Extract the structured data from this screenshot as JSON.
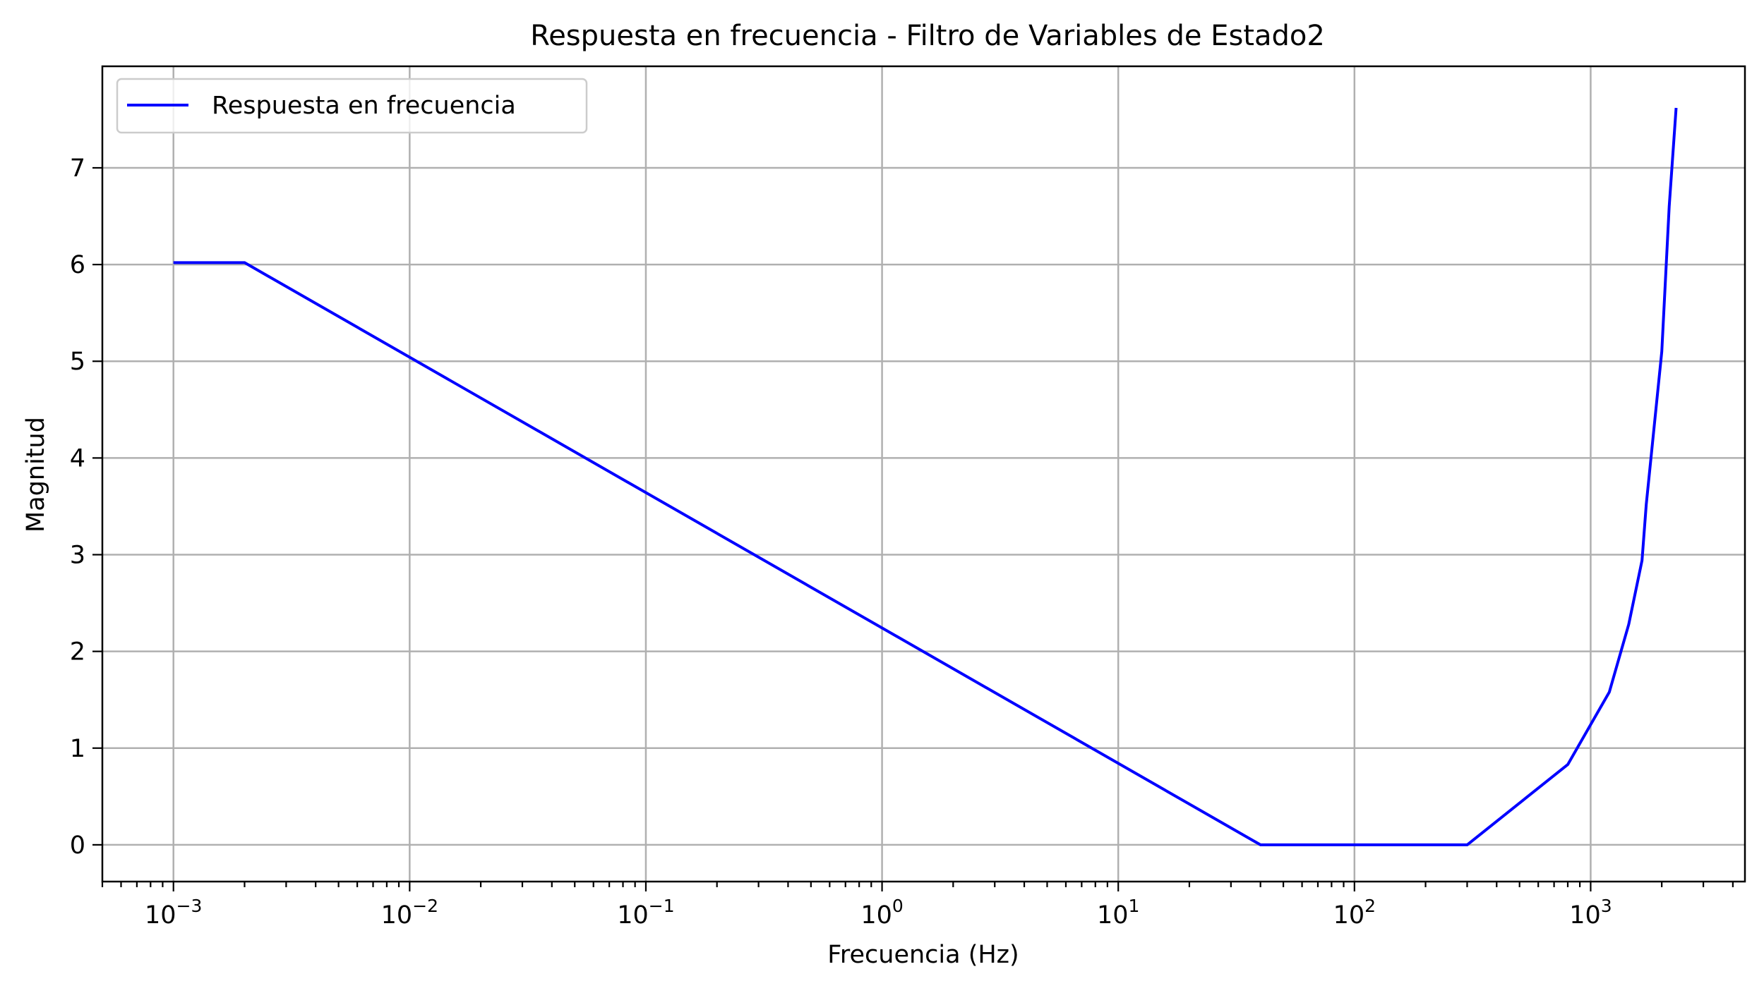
{
  "chart_data": {
    "type": "line",
    "title": "Respuesta en frecuencia - Filtro de Variables de Estado2",
    "xlabel": "Frecuencia (Hz)",
    "ylabel": "Magnitud",
    "xscale": "log",
    "xlim": [
      0.0005,
      4500
    ],
    "ylim": [
      -0.38,
      8.05
    ],
    "x_ticks": [
      {
        "value": 0.001,
        "base": "10",
        "exp": "−3"
      },
      {
        "value": 0.01,
        "base": "10",
        "exp": "−2"
      },
      {
        "value": 0.1,
        "base": "10",
        "exp": "−1"
      },
      {
        "value": 1,
        "base": "10",
        "exp": "0"
      },
      {
        "value": 10,
        "base": "10",
        "exp": "1"
      },
      {
        "value": 100,
        "base": "10",
        "exp": "2"
      },
      {
        "value": 1000,
        "base": "10",
        "exp": "3"
      }
    ],
    "y_ticks": [
      {
        "value": 0,
        "label": "0"
      },
      {
        "value": 1,
        "label": "1"
      },
      {
        "value": 2,
        "label": "2"
      },
      {
        "value": 3,
        "label": "3"
      },
      {
        "value": 4,
        "label": "4"
      },
      {
        "value": 5,
        "label": "5"
      },
      {
        "value": 6,
        "label": "6"
      },
      {
        "value": 7,
        "label": "7"
      }
    ],
    "grid": true,
    "legend": {
      "position": "top-left"
    },
    "series": [
      {
        "name": "Respuesta en frecuencia",
        "color": "#0000ff",
        "x": [
          0.001,
          0.002,
          40,
          300,
          800,
          1200,
          1450,
          1650,
          1720,
          2000,
          2150,
          2300
        ],
        "y": [
          6.02,
          6.02,
          0.0,
          0.0,
          0.83,
          1.58,
          2.28,
          2.94,
          3.52,
          5.1,
          6.6,
          7.62
        ]
      }
    ]
  }
}
